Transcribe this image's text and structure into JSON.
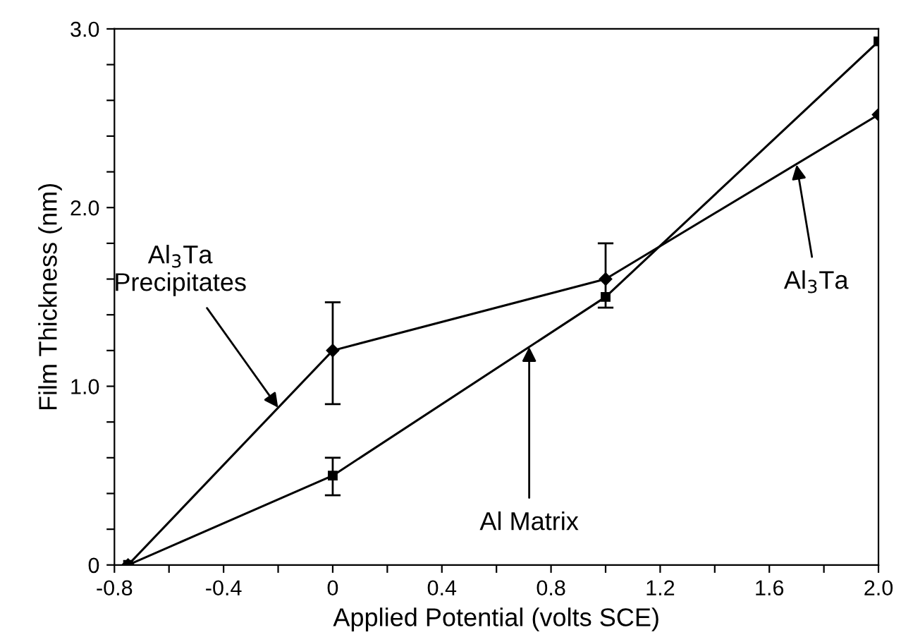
{
  "chart_data": {
    "type": "line",
    "xlabel": "Applied Potential (volts SCE)",
    "ylabel": "Film Thickness (nm)",
    "series": [
      {
        "color": "#000000",
        "marker": "diamond",
        "x": [
          -0.75,
          0,
          1.0,
          2.0
        ],
        "values": [
          0,
          1.2,
          1.6,
          2.52
        ],
        "errors": [
          null,
          [
            0.9,
            1.47
          ],
          [
            1.44,
            1.8
          ],
          null
        ]
      },
      {
        "color": "#000000",
        "marker": "square",
        "x": [
          -0.75,
          0,
          1.0,
          2.0
        ],
        "values": [
          0,
          0.5,
          1.5,
          2.93
        ],
        "errors": [
          null,
          [
            0.39,
            0.6
          ],
          null,
          null
        ]
      }
    ],
    "xlim": [
      -0.8,
      2.0
    ],
    "ylim": [
      0,
      3.0
    ],
    "xticks": [
      {
        "value": -0.8,
        "label": "-0.8"
      },
      {
        "value": -0.6,
        "label": null
      },
      {
        "value": -0.4,
        "label": "-0.4"
      },
      {
        "value": -0.2,
        "label": null
      },
      {
        "value": 0,
        "label": "0"
      },
      {
        "value": 0.2,
        "label": null
      },
      {
        "value": 0.4,
        "label": "0.4"
      },
      {
        "value": 0.6,
        "label": null
      },
      {
        "value": 0.8,
        "label": "0.8"
      },
      {
        "value": 1.0,
        "label": null
      },
      {
        "value": 1.2,
        "label": "1.2"
      },
      {
        "value": 1.4,
        "label": null
      },
      {
        "value": 1.6,
        "label": "1.6"
      },
      {
        "value": 1.8,
        "label": null
      },
      {
        "value": 2.0,
        "label": "2.0"
      }
    ],
    "yticks": [
      0,
      {
        "value": 0.2,
        "label": null
      },
      {
        "value": 0.4,
        "label": null
      },
      {
        "value": 0.6,
        "label": null
      },
      {
        "value": 0.8,
        "label": null
      },
      {
        "value": 1.0,
        "label": "1.0"
      },
      {
        "value": 1.2,
        "label": null
      },
      {
        "value": 1.4,
        "label": null
      },
      {
        "value": 1.6,
        "label": null
      },
      {
        "value": 1.8,
        "label": null
      },
      {
        "value": 2.0,
        "label": "2.0"
      },
      {
        "value": 2.2,
        "label": null
      },
      {
        "value": 2.4,
        "label": null
      },
      {
        "value": 2.6,
        "label": null
      },
      {
        "value": 2.8,
        "label": null
      },
      {
        "value": 3.0,
        "label": "3.0"
      }
    ],
    "grid": false,
    "legend": false,
    "line_style": "solid",
    "annotations": [
      {
        "text": "Al$_{3}$Ta\nPrecipitates",
        "x": -0.2,
        "y": 0.88
      },
      {
        "text": "Al Matrix",
        "x": 0.72,
        "y": 1.22
      },
      {
        "text": "Al$_{3}$Ta",
        "x": 1.7,
        "y": 2.24
      }
    ]
  }
}
